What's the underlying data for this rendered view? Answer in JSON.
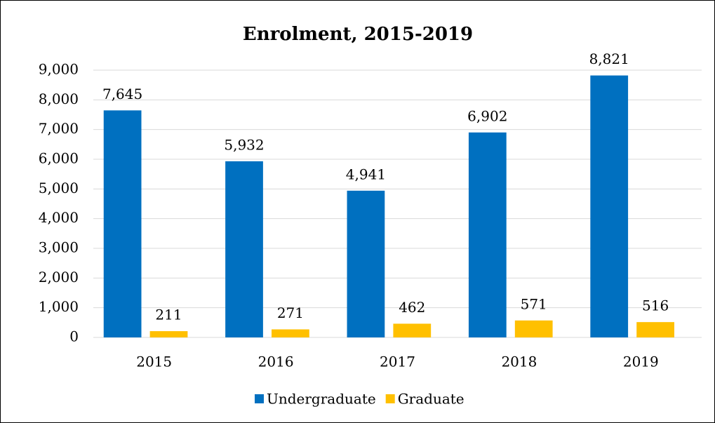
{
  "chart_data": {
    "type": "bar",
    "title": "Enrolment, 2015-2019",
    "categories": [
      "2015",
      "2016",
      "2017",
      "2018",
      "2019"
    ],
    "series": [
      {
        "name": "Undergraduate",
        "color": "#0070c0",
        "values": [
          7645,
          5932,
          4941,
          6902,
          8821
        ],
        "value_labels": [
          "7,645",
          "5,932",
          "4,941",
          "6,902",
          "8,821"
        ]
      },
      {
        "name": "Graduate",
        "color": "#ffc000",
        "values": [
          211,
          271,
          462,
          571,
          516
        ],
        "value_labels": [
          "211",
          "271",
          "462",
          "571",
          "516"
        ]
      }
    ],
    "ylim": [
      0,
      9000
    ],
    "yticks": [
      0,
      {
        "value": 1000,
        "label": "1,000"
      },
      {
        "value": 2000,
        "label": "2,000"
      },
      {
        "value": 3000,
        "label": "3,000"
      },
      {
        "value": 4000,
        "label": "4,000"
      },
      {
        "value": 5000,
        "label": "5,000"
      },
      {
        "value": 6000,
        "label": "6,000"
      },
      {
        "value": 7000,
        "label": "7,000"
      },
      {
        "value": 8000,
        "label": "8,000"
      },
      {
        "value": 9000,
        "label": "9,000"
      }
    ],
    "grid": true,
    "legend": "bottom"
  }
}
